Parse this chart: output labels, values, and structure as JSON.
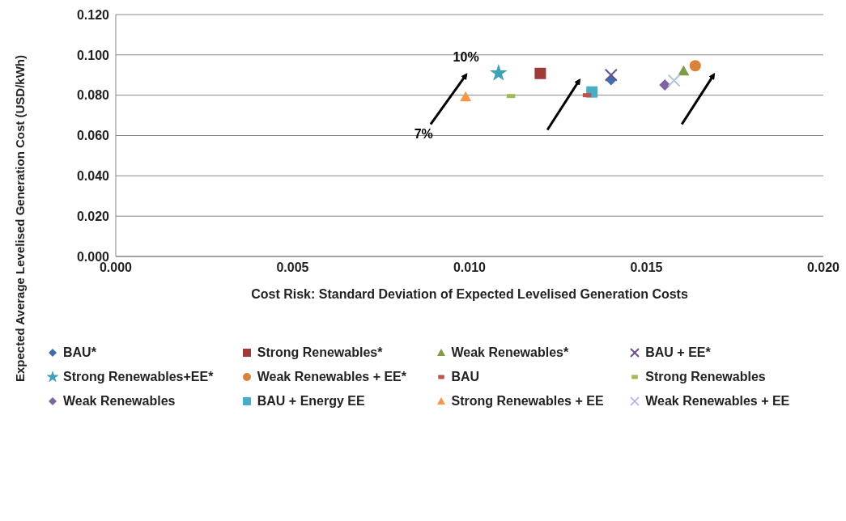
{
  "chart_data": {
    "type": "scatter",
    "xlabel": "Cost Risk: Standard Deviation of Expected Levelised Generation Costs",
    "ylabel": "Expected Average Levelised Generation Cost (USD/kWh)",
    "xlim": [
      0,
      0.02
    ],
    "xticks": [
      {
        "value": 0,
        "label": "0.000"
      },
      {
        "value": 0.005,
        "label": "0.005"
      },
      {
        "value": 0.01,
        "label": "0.010"
      },
      {
        "value": 0.015,
        "label": "0.015"
      },
      {
        "value": 0.02,
        "label": "0.020"
      }
    ],
    "ylim": [
      0,
      0.12
    ],
    "yticks": [
      {
        "value": 0,
        "label": "0.000"
      },
      {
        "value": 0.02,
        "label": "0.020"
      },
      {
        "value": 0.04,
        "label": "0.040"
      },
      {
        "value": 0.06,
        "label": "0.060"
      },
      {
        "value": 0.08,
        "label": "0.080"
      },
      {
        "value": 0.1,
        "label": "0.100"
      },
      {
        "value": 0.12,
        "label": "0.120"
      }
    ],
    "grid": "y",
    "legend": "bottom",
    "annotations": [
      "10%",
      "7%"
    ],
    "series": [
      {
        "name": "BAU*",
        "color": "#3f6eb0",
        "marker": "diamond",
        "x": [
          0.014
        ],
        "values": [
          0.0877
        ]
      },
      {
        "name": "Strong Renewables*",
        "color": "#9e3b38",
        "marker": "square",
        "x": [
          0.012
        ],
        "values": [
          0.0908
        ]
      },
      {
        "name": "Weak Renewables*",
        "color": "#7f9a48",
        "marker": "triangle",
        "x": [
          0.01605
        ],
        "values": [
          0.092
        ]
      },
      {
        "name": "BAU + EE*",
        "color": "#6a4f8a",
        "marker": "cross",
        "x": [
          0.014
        ],
        "values": [
          0.09
        ]
      },
      {
        "name": "Strong Renewables+EE*",
        "color": "#3fa0b8",
        "marker": "star",
        "x": [
          0.01082
        ],
        "values": [
          0.0909
        ]
      },
      {
        "name": "Weak Renewables + EE*",
        "color": "#d9823b",
        "marker": "circle",
        "x": [
          0.01638
        ],
        "values": [
          0.0946
        ]
      },
      {
        "name": "BAU",
        "color": "#c0504d",
        "x": [
          0.01332
        ],
        "values": [
          0.08
        ]
      },
      {
        "name": "Strong Renewables",
        "color": "#9bbb59",
        "x": [
          0.01117
        ],
        "values": [
          0.0796
        ]
      },
      {
        "name": "Weak Renewables",
        "color": "#8064a2",
        "marker": "diamond",
        "x": [
          0.01552
        ],
        "values": [
          0.0851
        ]
      },
      {
        "name": "BAU + Energy EE",
        "color": "#4bacc6",
        "marker": "square",
        "x": [
          0.01346
        ],
        "values": [
          0.0816
        ]
      },
      {
        "name": "Strong Renewables + EE",
        "color": "#f79646",
        "marker": "triangle",
        "x": [
          0.00989
        ],
        "values": [
          0.0792
        ]
      },
      {
        "name": "Weak Renewables + EE",
        "color": "#b3c3e0",
        "marker": "cross",
        "x": [
          0.01578
        ],
        "values": [
          0.0873
        ]
      }
    ]
  }
}
